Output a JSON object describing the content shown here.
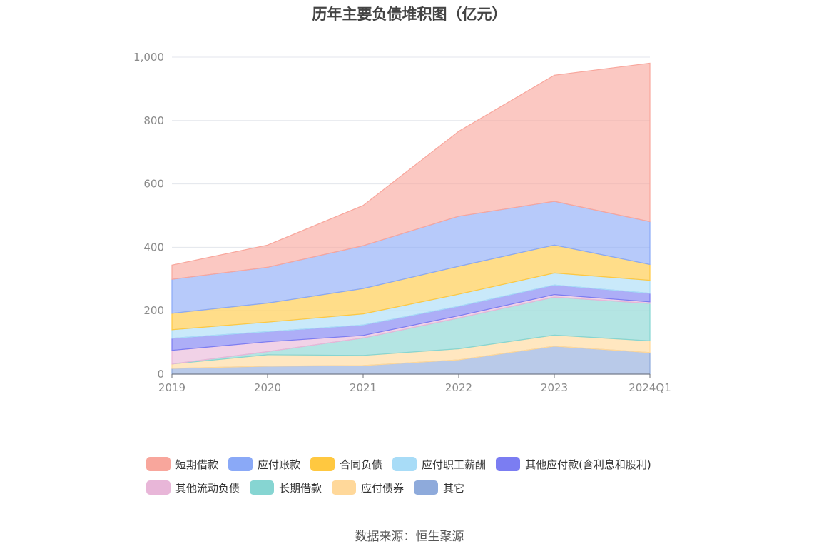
{
  "title": "历年主要负债堆积图（亿元）",
  "source": "数据来源：恒生聚源",
  "chart_data": {
    "type": "area",
    "stacked": true,
    "title": "历年主要负债堆积图（亿元）",
    "categories": [
      "2019",
      "2020",
      "2021",
      "2022",
      "2023",
      "2024Q1"
    ],
    "y_ticks": [
      "0",
      "200",
      "400",
      "600",
      "800",
      "1,000"
    ],
    "ylim": [
      0,
      1000
    ],
    "grid": true,
    "legend_position": "bottom",
    "series": [
      {
        "name": "其它",
        "color": "#8eaadb",
        "values": [
          18,
          25,
          27,
          45,
          88,
          68
        ]
      },
      {
        "name": "应付债券",
        "color": "#ffd89a",
        "values": [
          14,
          36,
          32,
          35,
          35,
          37
        ]
      },
      {
        "name": "长期借款",
        "color": "#86d5d2",
        "values": [
          0,
          10,
          55,
          97,
          120,
          118
        ]
      },
      {
        "name": "其他流动负债",
        "color": "#e8b6d8",
        "values": [
          43,
          31,
          8,
          7,
          8,
          5
        ]
      },
      {
        "name": "其他应付款(含利息和股利)",
        "color": "#7b7df2",
        "values": [
          38,
          32,
          33,
          30,
          30,
          27
        ]
      },
      {
        "name": "应付职工薪酬",
        "color": "#a8dcf7",
        "values": [
          27,
          30,
          35,
          38,
          38,
          41
        ]
      },
      {
        "name": "合同负债",
        "color": "#ffc840",
        "values": [
          52,
          60,
          80,
          88,
          88,
          50
        ]
      },
      {
        "name": "应付账款",
        "color": "#8aa9f7",
        "values": [
          107,
          113,
          135,
          158,
          138,
          135
        ]
      },
      {
        "name": "短期借款",
        "color": "#f8a69c",
        "values": [
          45,
          70,
          127,
          268,
          398,
          500
        ]
      }
    ]
  },
  "legend": [
    {
      "label": "短期借款",
      "color": "#f8a69c"
    },
    {
      "label": "应付账款",
      "color": "#8aa9f7"
    },
    {
      "label": "合同负债",
      "color": "#ffc840"
    },
    {
      "label": "应付职工薪酬",
      "color": "#a8dcf7"
    },
    {
      "label": "其他应付款(含利息和股利)",
      "color": "#7b7df2"
    },
    {
      "label": "其他流动负债",
      "color": "#e8b6d8"
    },
    {
      "label": "长期借款",
      "color": "#86d5d2"
    },
    {
      "label": "应付债券",
      "color": "#ffd89a"
    },
    {
      "label": "其它",
      "color": "#8eaadb"
    }
  ]
}
